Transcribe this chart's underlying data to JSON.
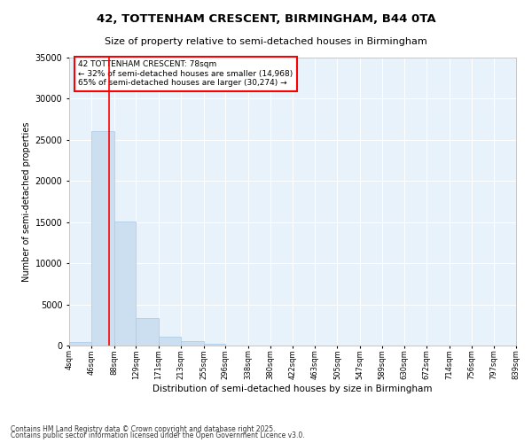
{
  "title": "42, TOTTENHAM CRESCENT, BIRMINGHAM, B44 0TA",
  "subtitle": "Size of property relative to semi-detached houses in Birmingham",
  "xlabel": "Distribution of semi-detached houses by size in Birmingham",
  "ylabel": "Number of semi-detached properties",
  "bar_color": "#ccdff0",
  "bar_edge_color": "#a8c8e8",
  "background_color": "#e8f2fa",
  "grid_color": "#ffffff",
  "red_line_x": 78,
  "annotation_title": "42 TOTTENHAM CRESCENT: 78sqm",
  "annotation_line1": "← 32% of semi-detached houses are smaller (14,968)",
  "annotation_line2": "65% of semi-detached houses are larger (30,274) →",
  "footer_line1": "Contains HM Land Registry data © Crown copyright and database right 2025.",
  "footer_line2": "Contains public sector information licensed under the Open Government Licence v3.0.",
  "bin_edges": [
    4,
    46,
    88,
    129,
    171,
    213,
    255,
    296,
    338,
    380,
    422,
    463,
    505,
    547,
    589,
    630,
    672,
    714,
    756,
    797,
    839
  ],
  "bin_labels": [
    "4sqm",
    "46sqm",
    "88sqm",
    "129sqm",
    "171sqm",
    "213sqm",
    "255sqm",
    "296sqm",
    "338sqm",
    "380sqm",
    "422sqm",
    "463sqm",
    "505sqm",
    "547sqm",
    "589sqm",
    "630sqm",
    "672sqm",
    "714sqm",
    "756sqm",
    "797sqm",
    "839sqm"
  ],
  "bar_heights": [
    400,
    26100,
    15100,
    3300,
    1100,
    500,
    200,
    0,
    0,
    0,
    0,
    0,
    0,
    0,
    0,
    0,
    0,
    0,
    0,
    0
  ],
  "ylim": [
    0,
    35000
  ],
  "yticks": [
    0,
    5000,
    10000,
    15000,
    20000,
    25000,
    30000,
    35000
  ]
}
